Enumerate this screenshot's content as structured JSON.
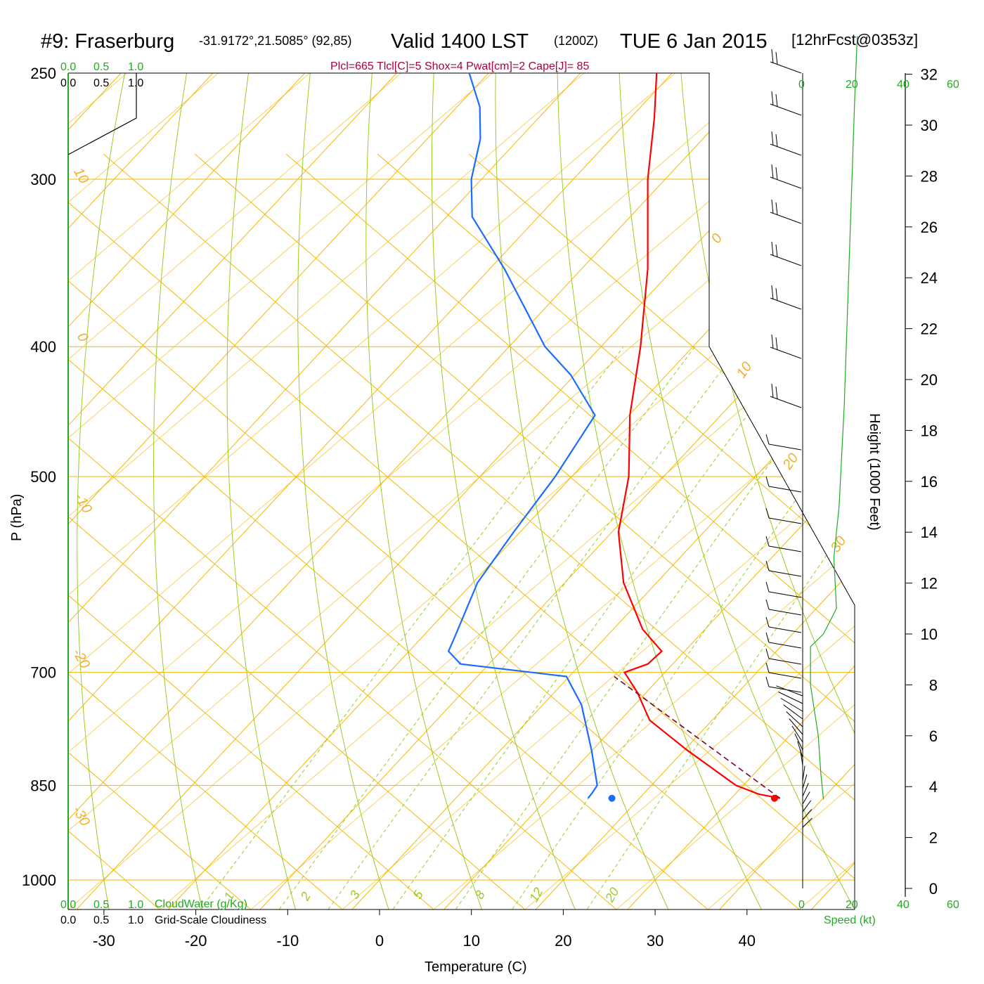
{
  "header": {
    "station": "#9: Fraserburg",
    "coords": "-31.9172°,21.5085° (92,85)",
    "valid": "Valid 1400 LST",
    "utc": "(1200Z)",
    "date": "TUE 6 Jan 2015",
    "forecast": "[12hrFcst@0353z]"
  },
  "indices": "Plcl=665 Tlcl[C]=5 Shox=4 Pwat[cm]=2 Cape[J]= 85",
  "colors": {
    "temperature": "#ff0000",
    "dewpoint": "#1a6cff",
    "isotherm": "#f5b800",
    "dry_adiabat": "#99cc22",
    "mixing_ratio": "#99cc22",
    "wind_speed": "#22aa22",
    "parcel": "#7a0030",
    "titles_green": "#22aa22",
    "indices": "#aa0044"
  },
  "labels": {
    "pressure_axis": "P (hPa)",
    "temperature_axis": "Temperature (C)",
    "height_axis": "Height (1000 Feet)",
    "speed_axis": "Speed (kt)",
    "cloud_water": "CloudWater (g/Kg)",
    "cloudiness": "Grid-Scale Cloudiness"
  },
  "scales": {
    "cloud_green": [
      "0.0",
      "0.5",
      "1.0"
    ],
    "cloud_black": [
      "0.0",
      "0.5",
      "1.0"
    ],
    "speed_ticks": [
      "0",
      "20",
      "40",
      "60"
    ]
  },
  "chart_data": {
    "type": "line",
    "title": "#9: Fraserburg Valid 1400 LST TUE 6 Jan 2015",
    "xlabel": "Temperature (C)",
    "ylabel": "P (hPa)",
    "y_scale": "log",
    "xlim": [
      -30,
      40
    ],
    "ylim": [
      1000,
      250
    ],
    "pressure_ticks": [
      250,
      300,
      400,
      500,
      700,
      850,
      1000
    ],
    "temperature_ticks": [
      -30,
      -20,
      -10,
      0,
      10,
      20,
      30,
      40
    ],
    "height_ticks_kft": [
      0,
      2,
      4,
      6,
      8,
      10,
      12,
      14,
      16,
      18,
      20,
      22,
      24,
      26,
      28,
      30,
      32
    ],
    "isotherm_labels": [
      "10",
      "0",
      "-10",
      "-20",
      "-30",
      "0",
      "10",
      "20",
      "30"
    ],
    "mixing_ratio_labels": [
      "1",
      "2",
      "3",
      "5",
      "8",
      "12",
      "20"
    ],
    "temperature_profile": {
      "name": "Temperature",
      "pressure": [
        869,
        863,
        850,
        800,
        760,
        725,
        700,
        690,
        675,
        650,
        600,
        550,
        500,
        450,
        400,
        350,
        300,
        270,
        250
      ],
      "temperature": [
        35.3,
        32.6,
        29.2,
        20.3,
        13.2,
        9.1,
        5.6,
        7.3,
        7.5,
        3.2,
        -3.6,
        -9.3,
        -13.8,
        -19.9,
        -25.7,
        -32.8,
        -41.9,
        -47.4,
        -51.7
      ]
    },
    "dewpoint_profile": {
      "name": "Dewpoint",
      "pressure": [
        869,
        860,
        850,
        800,
        740,
        705,
        690,
        675,
        660,
        600,
        550,
        500,
        450,
        420,
        400,
        350,
        320,
        300,
        280,
        265,
        250
      ],
      "dewpoint": [
        14.4,
        14.3,
        14.1,
        9.9,
        4.2,
        -0.3,
        -13.1,
        -15.7,
        -16.4,
        -19.5,
        -20.7,
        -21.8,
        -23.7,
        -30.4,
        -36.1,
        -48.4,
        -57.2,
        -61.1,
        -64.2,
        -67.5,
        -72.1
      ]
    },
    "parcel_path": {
      "name": "Parcel",
      "pressure": [
        869,
        705
      ],
      "temperature": [
        35.3,
        4.9
      ]
    },
    "surface_points": {
      "pressure": 869,
      "temperature": 34.7,
      "dewpoint": 17.0
    },
    "wind_speed_profile": {
      "name": "Speed (kt)",
      "height_kft": [
        3.5,
        4.5,
        6,
        8,
        9.5,
        10,
        11,
        13,
        15,
        17,
        19,
        22,
        25,
        28,
        31,
        33.5
      ],
      "speed": [
        8,
        7,
        6,
        3,
        3,
        8,
        13,
        12,
        14,
        15,
        16,
        17,
        18,
        19,
        20,
        21
      ]
    }
  }
}
